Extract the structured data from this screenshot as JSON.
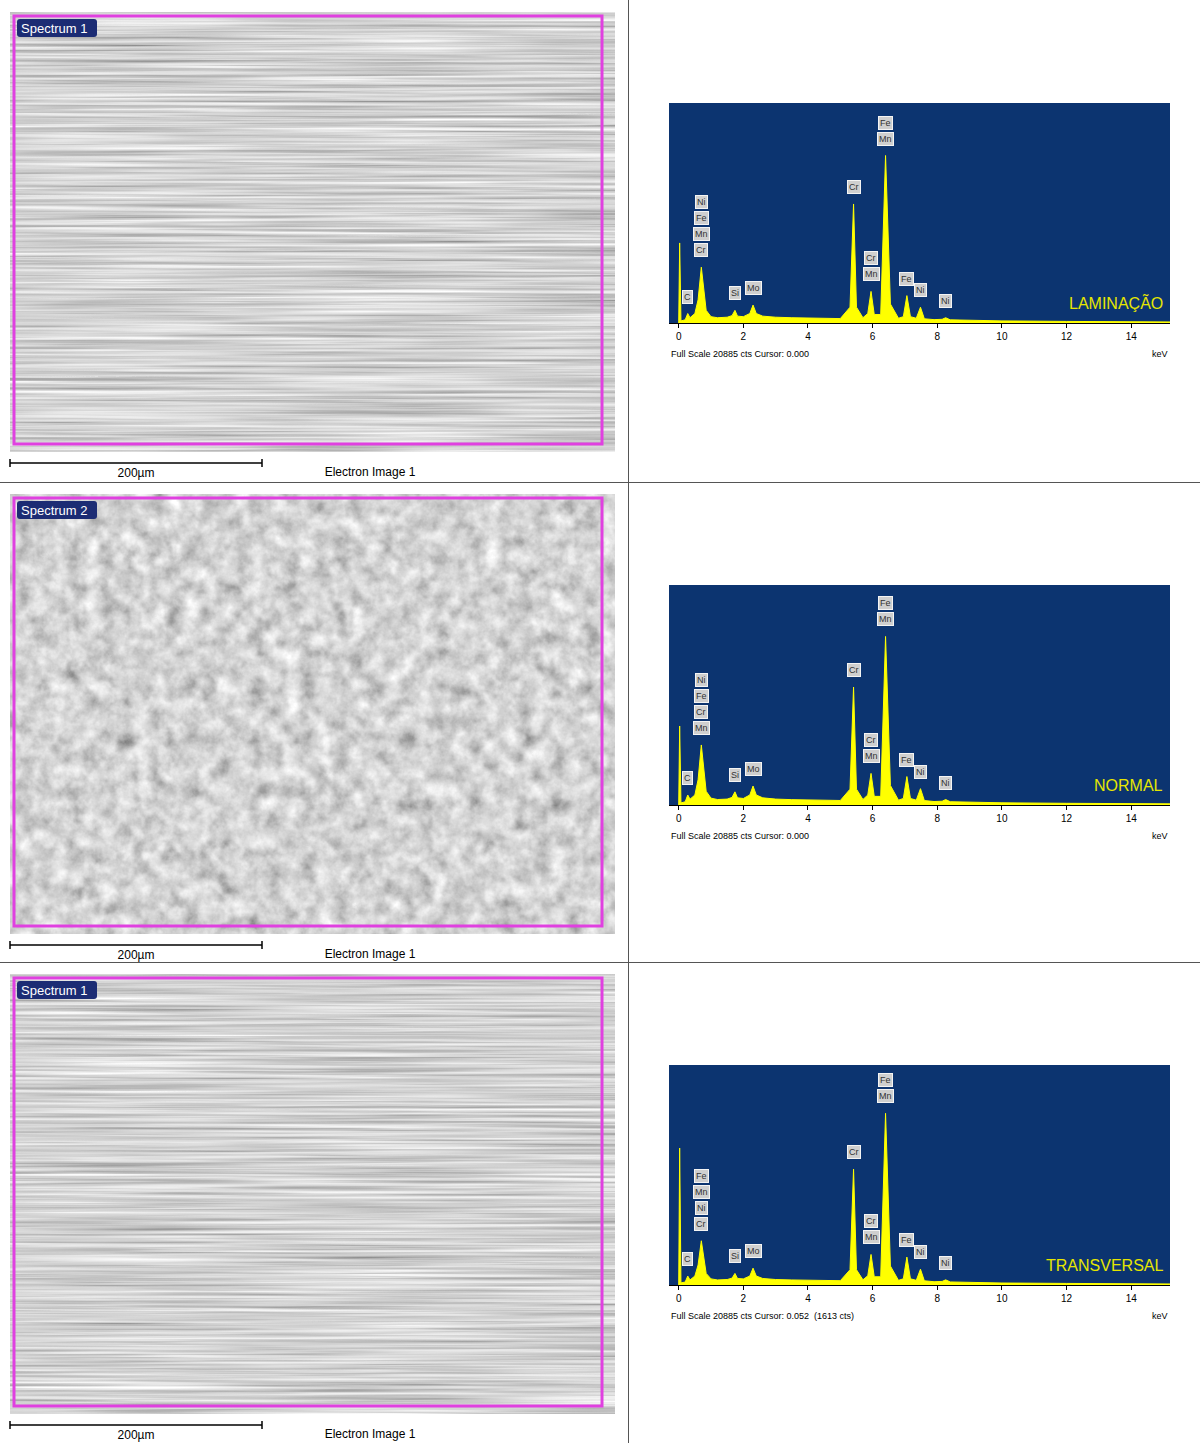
{
  "images": [
    {
      "label": "Spectrum 1",
      "scale_bar": "200µm",
      "caption": "Electron Image 1"
    },
    {
      "label": "Spectrum 2",
      "scale_bar": "200µm",
      "caption": "Electron Image 1"
    },
    {
      "label": "Spectrum 1",
      "scale_bar": "200µm",
      "caption": "Electron Image 1"
    }
  ],
  "chart_data": [
    {
      "type": "area",
      "label": "LAMINAÇÃO",
      "footer": "Full Scale 20885 cts Cursor: 0.000",
      "x_label": "keV",
      "color": "#ffff00",
      "grid": false,
      "tick_labels": "x",
      "xlim": [
        -0.3,
        15.2
      ],
      "xticks": [
        0,
        2,
        4,
        6,
        8,
        10,
        12,
        14
      ],
      "ylim": [
        0,
        20885
      ],
      "x": [
        0,
        0.03,
        0.07,
        0.2,
        0.28,
        0.35,
        0.5,
        0.6,
        0.7,
        0.78,
        0.85,
        1.0,
        1.2,
        1.5,
        1.65,
        1.74,
        1.82,
        2.0,
        2.2,
        2.3,
        2.4,
        2.6,
        3.0,
        3.5,
        4.0,
        4.5,
        5.0,
        5.3,
        5.41,
        5.5,
        5.7,
        5.85,
        5.95,
        6.05,
        6.25,
        6.4,
        6.55,
        6.8,
        6.95,
        7.06,
        7.17,
        7.35,
        7.48,
        7.6,
        7.9,
        8.15,
        8.26,
        8.4,
        9,
        10,
        12,
        15.2
      ],
      "values": [
        0,
        7600,
        200,
        300,
        900,
        500,
        900,
        2200,
        5300,
        3000,
        1200,
        600,
        500,
        550,
        700,
        1200,
        650,
        600,
        900,
        1700,
        900,
        650,
        550,
        500,
        450,
        420,
        420,
        1500,
        11300,
        1500,
        500,
        900,
        3000,
        800,
        800,
        15900,
        1800,
        450,
        600,
        2600,
        600,
        450,
        1500,
        400,
        320,
        350,
        500,
        300,
        250,
        200,
        150,
        100
      ],
      "peak_labels": [
        {
          "x": 0.28,
          "labels": [
            "C"
          ]
        },
        {
          "x": 0.7,
          "labels": [
            "Ni",
            "Fe",
            "Mn",
            "Cr"
          ]
        },
        {
          "x": 1.74,
          "labels": [
            "Si"
          ]
        },
        {
          "x": 2.3,
          "labels": [
            "Mo"
          ]
        },
        {
          "x": 5.41,
          "labels": [
            "Cr"
          ]
        },
        {
          "x": 5.95,
          "labels": [
            "Cr",
            "Mn"
          ]
        },
        {
          "x": 6.4,
          "labels": [
            "Fe",
            "Mn"
          ]
        },
        {
          "x": 7.06,
          "labels": [
            "Fe"
          ]
        },
        {
          "x": 7.48,
          "labels": [
            "Ni"
          ]
        },
        {
          "x": 8.26,
          "labels": [
            "Ni"
          ]
        }
      ]
    },
    {
      "type": "area",
      "label": "NORMAL",
      "footer": "Full Scale 20885 cts Cursor: 0.000",
      "x_label": "keV",
      "color": "#ffff00",
      "grid": false,
      "tick_labels": "x",
      "xlim": [
        -0.3,
        15.2
      ],
      "xticks": [
        0,
        2,
        4,
        6,
        8,
        10,
        12,
        14
      ],
      "ylim": [
        0,
        20885
      ],
      "x": [
        0,
        0.03,
        0.07,
        0.2,
        0.28,
        0.35,
        0.5,
        0.6,
        0.7,
        0.78,
        0.85,
        1.0,
        1.2,
        1.5,
        1.65,
        1.74,
        1.82,
        2.0,
        2.2,
        2.3,
        2.4,
        2.6,
        3.0,
        3.5,
        4.0,
        4.5,
        5.0,
        5.3,
        5.41,
        5.5,
        5.7,
        5.85,
        5.95,
        6.05,
        6.25,
        6.4,
        6.55,
        6.8,
        6.95,
        7.06,
        7.17,
        7.35,
        7.48,
        7.6,
        7.9,
        8.15,
        8.26,
        8.4,
        9,
        10,
        12,
        15.2
      ],
      "values": [
        0,
        7500,
        200,
        300,
        950,
        550,
        950,
        2400,
        5700,
        3200,
        1300,
        650,
        520,
        560,
        720,
        1250,
        680,
        620,
        950,
        1800,
        950,
        680,
        560,
        510,
        460,
        430,
        430,
        1500,
        11200,
        1500,
        520,
        950,
        3000,
        820,
        820,
        16000,
        1850,
        460,
        620,
        2700,
        620,
        460,
        1550,
        420,
        330,
        360,
        520,
        310,
        260,
        210,
        160,
        110
      ],
      "peak_labels": [
        {
          "x": 0.28,
          "labels": [
            "C"
          ]
        },
        {
          "x": 0.7,
          "labels": [
            "Ni",
            "Fe",
            "Cr",
            "Mn"
          ]
        },
        {
          "x": 1.74,
          "labels": [
            "Si"
          ]
        },
        {
          "x": 2.3,
          "labels": [
            "Mo"
          ]
        },
        {
          "x": 5.41,
          "labels": [
            "Cr"
          ]
        },
        {
          "x": 5.95,
          "labels": [
            "Cr",
            "Mn"
          ]
        },
        {
          "x": 6.4,
          "labels": [
            "Fe",
            "Mn"
          ]
        },
        {
          "x": 7.06,
          "labels": [
            "Fe"
          ]
        },
        {
          "x": 7.48,
          "labels": [
            "Ni"
          ]
        },
        {
          "x": 8.26,
          "labels": [
            "Ni"
          ]
        }
      ]
    },
    {
      "type": "area",
      "label": "TRANSVERSAL",
      "footer": "Full Scale 20885 cts Cursor: 0.052  (1613 cts)",
      "x_label": "keV",
      "color": "#ffff00",
      "grid": false,
      "tick_labels": "x",
      "xlim": [
        -0.3,
        15.2
      ],
      "xticks": [
        0,
        2,
        4,
        6,
        8,
        10,
        12,
        14
      ],
      "ylim": [
        0,
        20885
      ],
      "x": [
        0,
        0.03,
        0.07,
        0.2,
        0.28,
        0.35,
        0.5,
        0.6,
        0.7,
        0.78,
        0.85,
        1.0,
        1.2,
        1.5,
        1.65,
        1.74,
        1.82,
        2.0,
        2.2,
        2.3,
        2.4,
        2.6,
        3.0,
        3.5,
        4.0,
        4.5,
        5.0,
        5.3,
        5.41,
        5.5,
        5.7,
        5.85,
        5.95,
        6.05,
        6.25,
        6.4,
        6.55,
        6.8,
        6.95,
        7.06,
        7.17,
        7.35,
        7.48,
        7.6,
        7.9,
        8.15,
        8.26,
        8.4,
        9,
        10,
        12,
        15.2
      ],
      "values": [
        0,
        13000,
        200,
        280,
        850,
        480,
        850,
        1900,
        4200,
        2500,
        1100,
        580,
        480,
        520,
        650,
        1100,
        620,
        580,
        850,
        1600,
        850,
        620,
        520,
        480,
        440,
        410,
        410,
        1450,
        11000,
        1450,
        490,
        880,
        2900,
        780,
        780,
        16300,
        1800,
        440,
        590,
        2650,
        590,
        440,
        1500,
        400,
        310,
        340,
        490,
        290,
        240,
        190,
        150,
        100
      ],
      "peak_labels": [
        {
          "x": 0.28,
          "labels": [
            "C"
          ]
        },
        {
          "x": 0.7,
          "labels": [
            "Fe",
            "Mn",
            "Ni",
            "Cr"
          ]
        },
        {
          "x": 1.74,
          "labels": [
            "Si"
          ]
        },
        {
          "x": 2.3,
          "labels": [
            "Mo"
          ]
        },
        {
          "x": 5.41,
          "labels": [
            "Cr"
          ]
        },
        {
          "x": 5.95,
          "labels": [
            "Cr",
            "Mn"
          ]
        },
        {
          "x": 6.4,
          "labels": [
            "Fe",
            "Mn"
          ]
        },
        {
          "x": 7.06,
          "labels": [
            "Fe"
          ]
        },
        {
          "x": 7.48,
          "labels": [
            "Ni"
          ]
        },
        {
          "x": 8.26,
          "labels": [
            "Ni"
          ]
        }
      ]
    }
  ]
}
